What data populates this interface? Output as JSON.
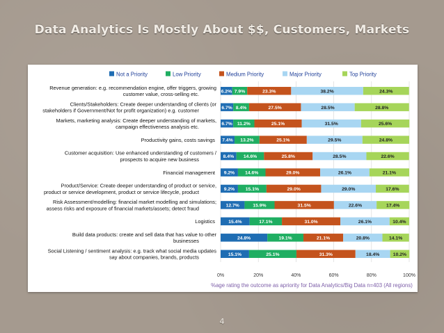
{
  "slide": {
    "title": "Data Analytics Is Mostly About $$, Customers, Markets",
    "page_number": "4"
  },
  "chart_data": {
    "type": "bar",
    "orientation": "horizontal",
    "stacked": true,
    "categories": [
      [
        "Revenue generation: e.g. recommendation engine, offer triggers, growing",
        "customer value, cross-selling etc."
      ],
      [
        "Clients/Stakeholders: Create deeper understanding of clients (or",
        "stakeholders if Government/Not for profit organization) e.g. customer"
      ],
      [
        "Markets, marketing analysis: Create deeper understanding of markets,",
        "campaign effectiveness analysis etc."
      ],
      [
        "Productivity gains, costs savings"
      ],
      [
        "Customer acquisition: Use enhanced understanding of customers /",
        "prospects to acquire new business"
      ],
      [
        "Financial management"
      ],
      [
        "Product/Service: Create deeper understanding of product or service,",
        "product or service development, product or service lifecycle, product"
      ],
      [
        "Risk Assessment/modelling:  financial market modelling and simulations;",
        "assess risks and exposure of financial markets/assets; detect fraud"
      ],
      [
        "Logistics"
      ],
      [
        "Build data products: create and sell data that has value to other",
        "businesses"
      ],
      [
        "Social Listening / sentiment analysis: e.g. track what social media updates",
        "say about companies, brands, products"
      ]
    ],
    "series": [
      {
        "name": "Not a Priority",
        "color": "#1f6db3",
        "values": [
          6.2,
          6.7,
          6.7,
          7.4,
          8.4,
          9.2,
          9.2,
          12.7,
          15.4,
          24.8,
          15.1
        ],
        "labels": [
          "6.2%",
          "6.7%",
          "6.7%",
          "7.4%",
          "8.4%",
          "9.2%",
          "9.2%",
          "12.7%",
          "15.4%",
          "24.8%",
          "15.1%"
        ]
      },
      {
        "name": "Low Priority",
        "color": "#1fae62",
        "values": [
          7.9,
          8.4,
          11.2,
          13.2,
          14.6,
          14.6,
          15.1,
          15.9,
          17.1,
          19.1,
          25.1
        ],
        "labels": [
          "7.9%",
          "8.4%",
          "11.2%",
          "13.2%",
          "14.6%",
          "14.6%",
          "15.1%",
          "15.9%",
          "17.1%",
          "19.1%",
          "25.1%"
        ]
      },
      {
        "name": "Medium Priority",
        "color": "#c4531d",
        "values": [
          23.3,
          27.5,
          25.1,
          25.1,
          25.8,
          29.0,
          29.0,
          31.5,
          31.0,
          21.1,
          31.3
        ],
        "labels": [
          "23.3%",
          "27.5%",
          "25.1%",
          "25.1%",
          "25.8%",
          "29.0%",
          "29.0%",
          "31.5%",
          "31.0%",
          "21.1%",
          "31.3%"
        ]
      },
      {
        "name": "Major Priority",
        "color": "#a8d6f2",
        "values": [
          38.2,
          28.5,
          31.5,
          29.5,
          28.5,
          26.1,
          29.0,
          22.6,
          26.1,
          20.8,
          18.4
        ],
        "labels": [
          "38.2%",
          "28.5%",
          "31.5%",
          "29.5%",
          "28.5%",
          "26.1%",
          "29.0%",
          "22.6%",
          "26.1%",
          "20.8%",
          "18.4%"
        ]
      },
      {
        "name": "Top Priority",
        "color": "#a6d55a",
        "values": [
          24.3,
          28.8,
          25.6,
          24.8,
          22.6,
          21.1,
          17.6,
          17.4,
          10.4,
          14.1,
          10.2
        ],
        "labels": [
          "24.3%",
          "28.8%",
          "25.6%",
          "24.8%",
          "22.6%",
          "21.1%",
          "17.6%",
          "17.4%",
          "10.4%",
          "14.1%",
          "10.2%"
        ]
      }
    ],
    "x_ticks": [
      "0%",
      "20%",
      "40%",
      "60%",
      "80%",
      "100%"
    ],
    "xlim": [
      0,
      100
    ],
    "xlabel": "%age rating the outcome as apriority for Data Analytics/Big Data n=403 (All regions)",
    "legend_position": "top",
    "grid": true,
    "label_color_dark": "#ffffff",
    "label_color_light": "#222222",
    "axis_label_color": "#7d5ea8"
  }
}
